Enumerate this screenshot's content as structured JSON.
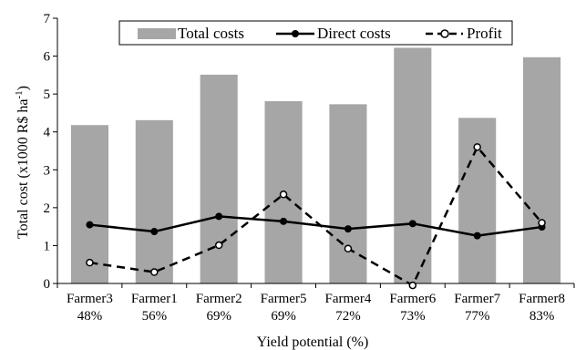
{
  "chart_data": {
    "type": "bar",
    "categories": [
      "Farmer3",
      "Farmer1",
      "Farmer2",
      "Farmer5",
      "Farmer4",
      "Farmer6",
      "Farmer7",
      "Farmer8"
    ],
    "category_sublabels": [
      "48%",
      "56%",
      "69%",
      "69%",
      "72%",
      "73%",
      "77%",
      "83%"
    ],
    "series": [
      {
        "name": "Total costs",
        "kind": "bar",
        "color": "#a6a6a6",
        "values": [
          4.18,
          4.31,
          5.51,
          4.81,
          4.73,
          6.22,
          4.37,
          5.97
        ]
      },
      {
        "name": "Direct costs",
        "kind": "line",
        "color": "#000000",
        "values": [
          1.55,
          1.37,
          1.77,
          1.64,
          1.44,
          1.58,
          1.26,
          1.49
        ]
      },
      {
        "name": "Profit",
        "kind": "line-dashed",
        "color": "#000000",
        "values": [
          0.55,
          0.3,
          1.01,
          2.35,
          0.92,
          -0.05,
          3.6,
          1.6
        ]
      }
    ],
    "xlabel": "Yield potential (%)",
    "ylabel": "Total cost (x1000 R$ ha",
    "ylabel_sup": "-1",
    "ylabel_close": ")",
    "ylim": [
      0,
      7
    ],
    "yticks": [
      "0",
      "1",
      "2",
      "3",
      "4",
      "5",
      "6",
      "7"
    ],
    "grid": false,
    "legend_position": "top"
  }
}
